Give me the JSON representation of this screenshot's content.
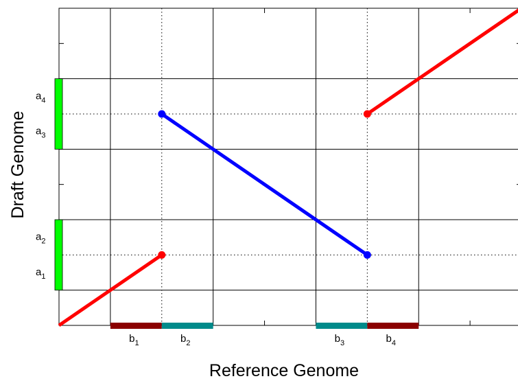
{
  "chart_data": {
    "type": "line",
    "xlabel": "Reference Genome",
    "ylabel": "Draft Genome",
    "xlim": [
      0,
      9
    ],
    "ylim": [
      0,
      4.5
    ],
    "grid": true,
    "x_gridlines": [
      0,
      1,
      3,
      5,
      7,
      9
    ],
    "y_gridlines": [
      0,
      0.5,
      1.5,
      2.5,
      3.5,
      4.5
    ],
    "dotted_x": [
      2,
      6
    ],
    "dotted_y": [
      1,
      3
    ],
    "series": [
      {
        "color": "#ff0000",
        "points": [
          [
            0,
            0
          ],
          [
            2,
            1
          ]
        ]
      },
      {
        "color": "#0000ff",
        "points": [
          [
            2,
            3
          ],
          [
            6,
            1
          ]
        ]
      },
      {
        "color": "#ff0000",
        "points": [
          [
            6,
            3
          ],
          [
            9,
            4.5
          ]
        ]
      }
    ],
    "markers": [
      {
        "x": 2,
        "y": 1,
        "color": "#ff0000"
      },
      {
        "x": 2,
        "y": 3,
        "color": "#0000ff"
      },
      {
        "x": 6,
        "y": 1,
        "color": "#0000ff"
      },
      {
        "x": 6,
        "y": 3,
        "color": "#ff0000"
      }
    ],
    "x_segments": [
      {
        "base": "b",
        "sub": "1",
        "from": 1,
        "to": 2,
        "color": "#8b0000"
      },
      {
        "base": "b",
        "sub": "2",
        "from": 2,
        "to": 3,
        "color": "#008b8b"
      },
      {
        "base": "b",
        "sub": "3",
        "from": 5,
        "to": 6,
        "color": "#008b8b"
      },
      {
        "base": "b",
        "sub": "4",
        "from": 6,
        "to": 7,
        "color": "#8b0000"
      }
    ],
    "y_segments": [
      {
        "from": 0.5,
        "to": 1.5,
        "color": "#00ff00"
      },
      {
        "from": 2.5,
        "to": 3.5,
        "color": "#00ff00"
      }
    ],
    "y_labels": [
      {
        "base": "a",
        "sub": "1",
        "y": 0.75
      },
      {
        "base": "a",
        "sub": "2",
        "y": 1.25
      },
      {
        "base": "a",
        "sub": "3",
        "y": 2.75
      },
      {
        "base": "a",
        "sub": "4",
        "y": 3.25
      }
    ]
  }
}
